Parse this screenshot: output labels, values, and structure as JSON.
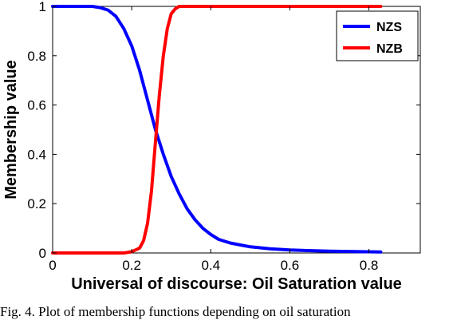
{
  "chart_data": {
    "type": "line",
    "xlabel": "Universal of discourse: Oil Saturation value",
    "ylabel": "Membership value",
    "xlim": [
      0,
      0.93
    ],
    "ylim": [
      0,
      1
    ],
    "xticks": [
      0,
      0.2,
      0.4,
      0.6,
      0.8
    ],
    "yticks": [
      0,
      0.2,
      0.4,
      0.6,
      0.8,
      1
    ],
    "xtick_labels": [
      "0",
      "0.2",
      "0.4",
      "0.6",
      "0.8"
    ],
    "ytick_labels": [
      "0",
      "0.2",
      "0.4",
      "0.6",
      "0.8",
      "1"
    ],
    "grid": false,
    "legend_position": "top-right",
    "series": [
      {
        "name": "NZS",
        "color": "#0000ff",
        "x": [
          0,
          0.1,
          0.12,
          0.14,
          0.16,
          0.18,
          0.2,
          0.22,
          0.24,
          0.26,
          0.28,
          0.3,
          0.32,
          0.34,
          0.36,
          0.38,
          0.4,
          0.42,
          0.45,
          0.5,
          0.55,
          0.6,
          0.7,
          0.83
        ],
        "y": [
          1,
          1,
          0.995,
          0.985,
          0.96,
          0.91,
          0.84,
          0.74,
          0.62,
          0.5,
          0.4,
          0.31,
          0.24,
          0.18,
          0.135,
          0.1,
          0.075,
          0.055,
          0.04,
          0.025,
          0.017,
          0.012,
          0.007,
          0.004
        ]
      },
      {
        "name": "NZB",
        "color": "#ff0000",
        "x": [
          0,
          0.18,
          0.2,
          0.22,
          0.23,
          0.24,
          0.25,
          0.26,
          0.27,
          0.28,
          0.29,
          0.3,
          0.31,
          0.32,
          0.35,
          0.83
        ],
        "y": [
          0,
          0,
          0.005,
          0.02,
          0.05,
          0.12,
          0.25,
          0.45,
          0.64,
          0.8,
          0.91,
          0.97,
          0.99,
          1,
          1,
          1
        ]
      }
    ]
  },
  "caption": "Fig. 4.   Plot of membership functions depending on oil saturation"
}
